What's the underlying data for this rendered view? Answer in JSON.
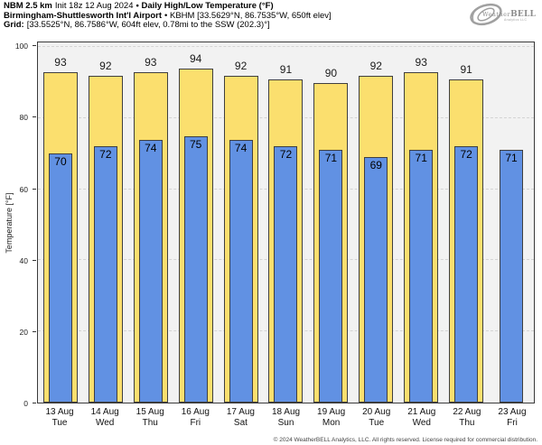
{
  "title": {
    "line1": {
      "bold_a": "NBM 2.5 km",
      "regular": "Init 18z 12 Aug 2024",
      "bold_b": "• Daily High/Low Temperature (°F)"
    },
    "line2": {
      "bold": "Birmingham-Shuttlesworth Int'l Airport",
      "regular": "• KBHM [33.5629°N, 86.7535°W, 650ft elev]"
    },
    "line3": {
      "bold": "Grid:",
      "regular": "[33.5525°N, 86.7586°W, 604ft elev, 0.78mi to the SSW (202.3)°]"
    }
  },
  "logo": {
    "name_a": "Weather",
    "name_b": "BELL",
    "tagline": "Analytics LLC"
  },
  "footer": "© 2024 WeatherBELL Analytics, LLC. All rights reserved. License required for commercial distribution.",
  "chart_data": {
    "type": "bar",
    "title": "Daily High/Low Temperature (°F)",
    "xlabel": "",
    "ylabel": "Temperature [°F]",
    "ylim": [
      0,
      101.3
    ],
    "yticks": [
      0,
      20,
      40,
      60,
      80,
      100
    ],
    "grid": "horizontal dashed at yticks",
    "legend_position": "none",
    "categories": [
      {
        "date": "13 Aug",
        "day": "Tue"
      },
      {
        "date": "14 Aug",
        "day": "Wed"
      },
      {
        "date": "15 Aug",
        "day": "Thu"
      },
      {
        "date": "16 Aug",
        "day": "Fri"
      },
      {
        "date": "17 Aug",
        "day": "Sat"
      },
      {
        "date": "18 Aug",
        "day": "Sun"
      },
      {
        "date": "19 Aug",
        "day": "Mon"
      },
      {
        "date": "20 Aug",
        "day": "Tue"
      },
      {
        "date": "21 Aug",
        "day": "Wed"
      },
      {
        "date": "22 Aug",
        "day": "Thu"
      },
      {
        "date": "23 Aug",
        "day": "Fri"
      }
    ],
    "series": [
      {
        "name": "Daily High",
        "color": "#fbdf6e",
        "values": [
          93,
          92,
          93,
          94,
          92,
          91,
          90,
          92,
          93,
          91,
          null
        ]
      },
      {
        "name": "Daily Low",
        "color": "#6191e3",
        "values": [
          70,
          72,
          74,
          75,
          74,
          72,
          71,
          69,
          71,
          72,
          71
        ]
      }
    ]
  },
  "colors": {
    "high_bar": "#fbdf6e",
    "low_bar": "#6191e3",
    "bar_border": "#3f3f3f",
    "plot_background": "#f2f2f2",
    "figure_background": "#ffffff",
    "gridline": "#d4d4d4",
    "logo_gray": "#8d8d8d"
  }
}
